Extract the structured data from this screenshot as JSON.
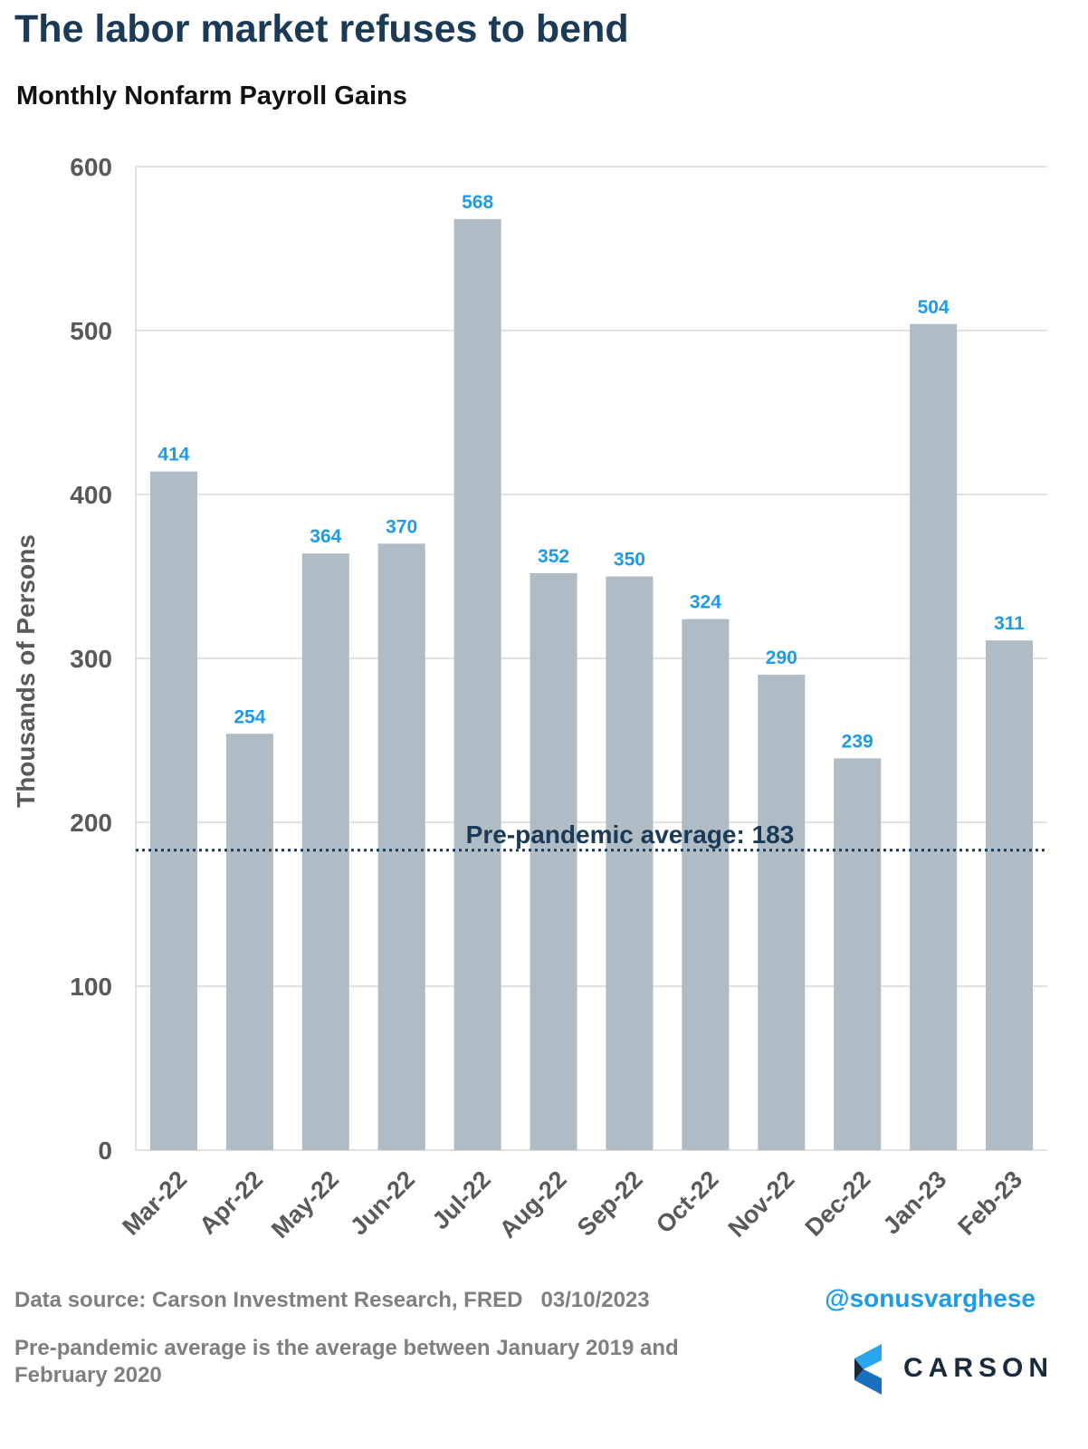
{
  "header": {
    "title": "The labor market refuses to bend",
    "subtitle": "Monthly Nonfarm Payroll Gains"
  },
  "footer": {
    "source": "Data source: Carson Investment Research, FRED   03/10/2023",
    "handle": "@sonusvarghese",
    "note": "Pre-pandemic average is the average between January 2019 and February 2020",
    "logo_text": "CARSON"
  },
  "colors": {
    "bar": "#b0bcc5",
    "data_label": "#1e9be8",
    "reference_line": "#1b3a55",
    "axis_text": "#595959",
    "gridline": "#d9d9d9"
  },
  "chart_data": {
    "type": "bar",
    "title": "Monthly Nonfarm Payroll Gains",
    "xlabel": "",
    "ylabel": "Thousands of Persons",
    "ylim": [
      0,
      600
    ],
    "yticks": [
      0,
      100,
      200,
      300,
      400,
      500,
      600
    ],
    "grid": true,
    "categories": [
      "Mar-22",
      "Apr-22",
      "May-22",
      "Jun-22",
      "Jul-22",
      "Aug-22",
      "Sep-22",
      "Oct-22",
      "Nov-22",
      "Dec-22",
      "Jan-23",
      "Feb-23"
    ],
    "values": [
      414,
      254,
      364,
      370,
      568,
      352,
      350,
      324,
      290,
      239,
      504,
      311
    ],
    "reference_line": {
      "value": 183,
      "label": "Pre-pandemic average: 183"
    }
  }
}
